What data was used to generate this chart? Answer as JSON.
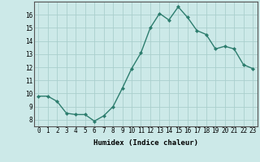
{
  "x": [
    0,
    1,
    2,
    3,
    4,
    5,
    6,
    7,
    8,
    9,
    10,
    11,
    12,
    13,
    14,
    15,
    16,
    17,
    18,
    19,
    20,
    21,
    22,
    23
  ],
  "y": [
    9.8,
    9.8,
    9.4,
    8.5,
    8.4,
    8.4,
    7.9,
    8.3,
    9.0,
    10.4,
    11.9,
    13.1,
    15.0,
    16.1,
    15.6,
    16.6,
    15.8,
    14.8,
    14.5,
    13.4,
    13.6,
    13.4,
    12.2,
    11.9
  ],
  "line_color": "#2d7d6e",
  "marker": "D",
  "marker_size": 2.0,
  "linewidth": 1.0,
  "bg_color": "#cce9e8",
  "grid_color": "#aacfcd",
  "xlabel": "Humidex (Indice chaleur)",
  "xlim": [
    -0.5,
    23.5
  ],
  "ylim": [
    7.5,
    17.0
  ],
  "yticks": [
    8,
    9,
    10,
    11,
    12,
    13,
    14,
    15,
    16
  ],
  "xtick_labels": [
    "0",
    "1",
    "2",
    "3",
    "4",
    "5",
    "6",
    "7",
    "8",
    "9",
    "10",
    "11",
    "12",
    "13",
    "14",
    "15",
    "16",
    "17",
    "18",
    "19",
    "20",
    "21",
    "22",
    "23"
  ],
  "label_fontsize": 6.5,
  "tick_fontsize": 5.5
}
